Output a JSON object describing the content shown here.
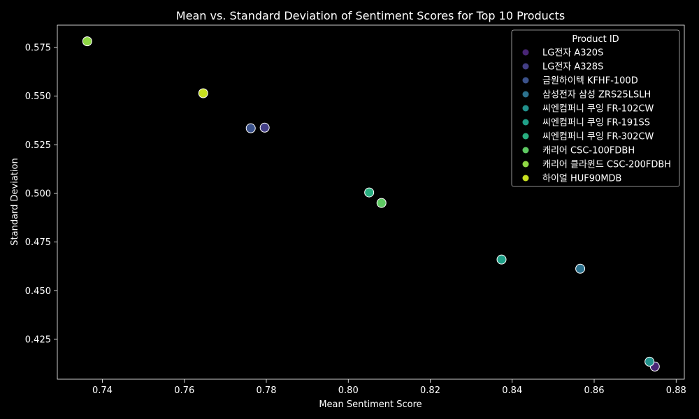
{
  "chart_data": {
    "type": "scatter",
    "title": "Mean vs. Standard Deviation of Sentiment Scores for Top 10 Products",
    "xlabel": "Mean Sentiment Score",
    "ylabel": "Standard Deviation",
    "xlim": [
      0.729,
      0.882
    ],
    "ylim": [
      0.4045,
      0.5865
    ],
    "xticks": [
      {
        "value": 0.74,
        "label": "0.74"
      },
      {
        "value": 0.76,
        "label": "0.76"
      },
      {
        "value": 0.78,
        "label": "0.78"
      },
      {
        "value": 0.8,
        "label": "0.80"
      },
      {
        "value": 0.82,
        "label": "0.82"
      },
      {
        "value": 0.84,
        "label": "0.84"
      },
      {
        "value": 0.86,
        "label": "0.86"
      },
      {
        "value": 0.88,
        "label": "0.88"
      }
    ],
    "yticks": [
      {
        "value": 0.425,
        "label": "0.425"
      },
      {
        "value": 0.45,
        "label": "0.450"
      },
      {
        "value": 0.475,
        "label": "0.475"
      },
      {
        "value": 0.5,
        "label": "0.500"
      },
      {
        "value": 0.525,
        "label": "0.525"
      },
      {
        "value": 0.55,
        "label": "0.550"
      },
      {
        "value": 0.575,
        "label": "0.575"
      }
    ],
    "grid": false,
    "legend": {
      "title": "Product ID",
      "placement": "top-right"
    },
    "series": [
      {
        "name": "LG전자 A320S",
        "color": "#482575",
        "points": [
          {
            "x": 0.8748,
            "y": 0.411
          }
        ]
      },
      {
        "name": "LG전자 A328S",
        "color": "#433e85",
        "points": [
          {
            "x": 0.7796,
            "y": 0.5338
          }
        ]
      },
      {
        "name": "금원하이텍 KFHF-100D",
        "color": "#3b528b",
        "points": [
          {
            "x": 0.7762,
            "y": 0.5335
          }
        ]
      },
      {
        "name": "삼성전자 삼성 ZRS25LSLH",
        "color": "#2c728e",
        "points": [
          {
            "x": 0.8566,
            "y": 0.4613
          }
        ]
      },
      {
        "name": "씨엔컴퍼니 쿠잉 FR-102CW",
        "color": "#21918c",
        "points": [
          {
            "x": 0.8735,
            "y": 0.4135
          }
        ]
      },
      {
        "name": "씨엔컴퍼니 쿠잉 FR-191SS",
        "color": "#1fa088",
        "points": [
          {
            "x": 0.8374,
            "y": 0.466
          }
        ]
      },
      {
        "name": "씨엔컴퍼니 쿠잉 FR-302CW",
        "color": "#28ae80",
        "points": [
          {
            "x": 0.8051,
            "y": 0.5005
          }
        ]
      },
      {
        "name": "캐리어 CSC-100FDBH",
        "color": "#5ec962",
        "points": [
          {
            "x": 0.8081,
            "y": 0.4951
          }
        ]
      },
      {
        "name": "캐리어 클라윈드 CSC-200FDBH",
        "color": "#8fd744",
        "points": [
          {
            "x": 0.7363,
            "y": 0.5782
          }
        ]
      },
      {
        "name": "하이얼 HUF90MDB",
        "color": "#c8e020",
        "points": [
          {
            "x": 0.7646,
            "y": 0.5515
          }
        ]
      }
    ]
  }
}
